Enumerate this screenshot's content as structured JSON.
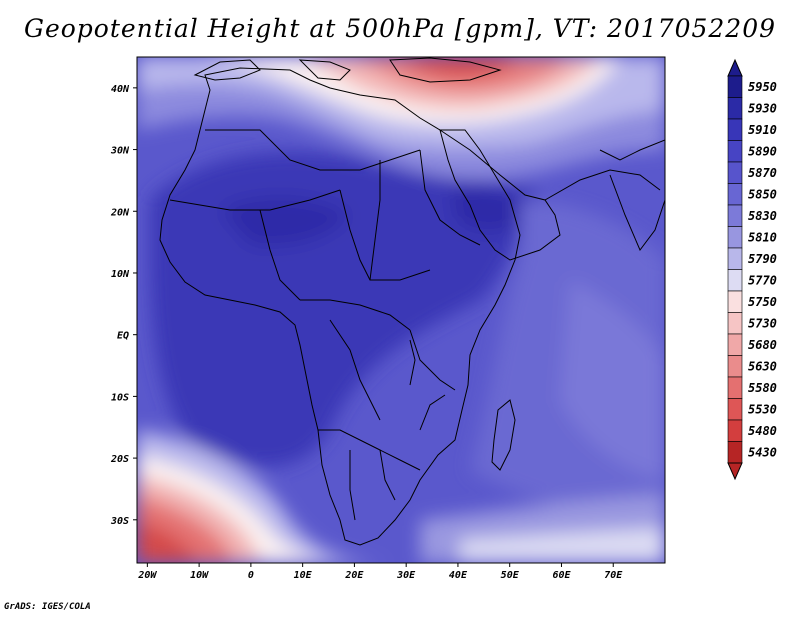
{
  "title": "Geopotential Height at 500hPa [gpm], VT: 2017052209",
  "credit": "GrADS: IGES/COLA",
  "map": {
    "lon_range": [
      -22,
      80
    ],
    "lat_range": [
      -37,
      45
    ],
    "x_ticks": [
      {
        "lon": -20,
        "label": "20W"
      },
      {
        "lon": -10,
        "label": "10W"
      },
      {
        "lon": 0,
        "label": "0"
      },
      {
        "lon": 10,
        "label": "10E"
      },
      {
        "lon": 20,
        "label": "20E"
      },
      {
        "lon": 30,
        "label": "30E"
      },
      {
        "lon": 40,
        "label": "40E"
      },
      {
        "lon": 50,
        "label": "50E"
      },
      {
        "lon": 60,
        "label": "60E"
      },
      {
        "lon": 70,
        "label": "70E"
      }
    ],
    "y_ticks": [
      {
        "lat": 40,
        "label": "40N"
      },
      {
        "lat": 30,
        "label": "30N"
      },
      {
        "lat": 20,
        "label": "20N"
      },
      {
        "lat": 10,
        "label": "10N"
      },
      {
        "lat": 0,
        "label": "EQ"
      },
      {
        "lat": -10,
        "label": "10S"
      },
      {
        "lat": -20,
        "label": "20S"
      },
      {
        "lat": -30,
        "label": "30S"
      }
    ]
  },
  "colorbar": {
    "labels": [
      "5950",
      "5930",
      "5910",
      "5890",
      "5870",
      "5850",
      "5830",
      "5810",
      "5790",
      "5770",
      "5750",
      "5730",
      "5680",
      "5630",
      "5580",
      "5530",
      "5480",
      "5430"
    ],
    "colors": [
      "#1d1c8c",
      "#2b2aa6",
      "#3836b8",
      "#4744c4",
      "#5754cc",
      "#6866d3",
      "#7c7ad9",
      "#9896e0",
      "#b8b7ea",
      "#dddcf3",
      "#fae0e0",
      "#f6c5c5",
      "#f0a8a8",
      "#ea8c8c",
      "#e47070",
      "#de5656",
      "#d33e3e",
      "#b62525"
    ],
    "top_arrow_color": "#1d1c8c",
    "bottom_arrow_color": "#b62525"
  }
}
